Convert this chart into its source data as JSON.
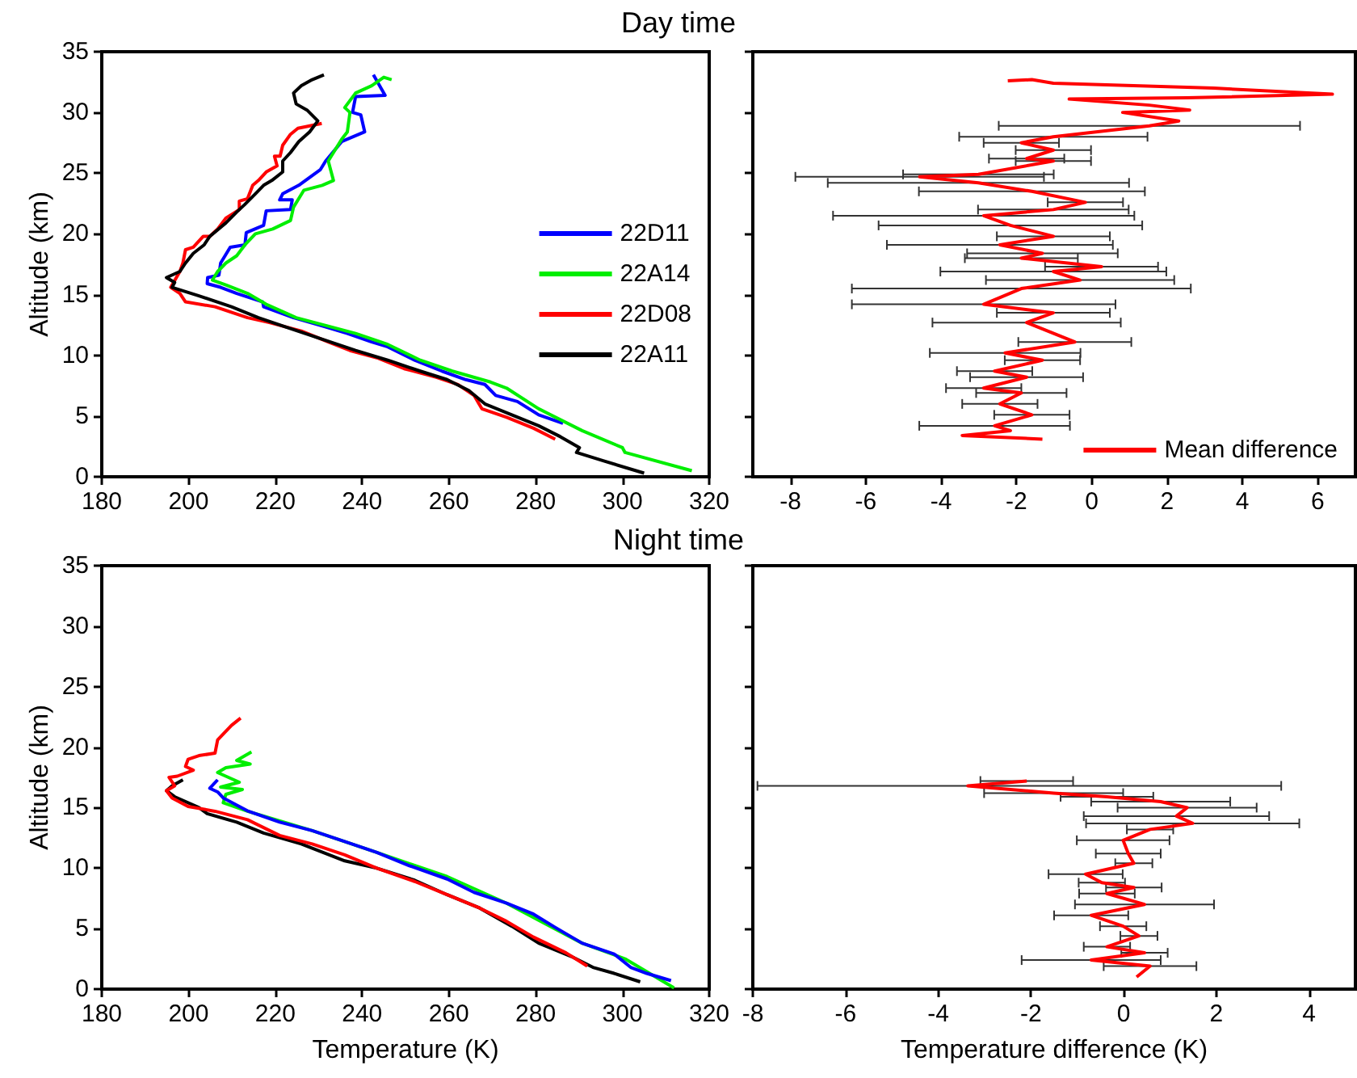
{
  "chart_data": [
    {
      "type": "line",
      "title": "Day time",
      "ylabel": "Altitude (km)",
      "xlim": [
        180,
        320
      ],
      "xticks": [
        180,
        200,
        220,
        240,
        260,
        280,
        300,
        320
      ],
      "ylim": [
        0,
        35
      ],
      "yticks": [
        0,
        5,
        10,
        15,
        20,
        25,
        30,
        35
      ],
      "legend": "right",
      "marker": "none",
      "series": [
        {
          "name": "22D11",
          "color": "#0000ff",
          "x": [
            242.6,
            245.3,
            238.5,
            237.8,
            239.7,
            240.6,
            235.3,
            231.6,
            230.4,
            225.4,
            221.7,
            221.0,
            223.9,
            223.5,
            217.9,
            217.3,
            213.3,
            213.0,
            209.6,
            207.4,
            207.0,
            204.4,
            204.3,
            207.4,
            211.1,
            217.1,
            217.3,
            224.2,
            231.0,
            236.6,
            242.2,
            245.9,
            252.1,
            258.4,
            263.9,
            268.3,
            270.8,
            275.8,
            280.7,
            286.3
          ],
          "values": [
            33.1,
            31.4,
            31.3,
            30.0,
            29.8,
            28.4,
            27.6,
            26.0,
            25.3,
            24.0,
            23.3,
            22.8,
            22.8,
            22.0,
            21.9,
            20.7,
            20.1,
            19.1,
            18.9,
            17.6,
            16.6,
            16.4,
            15.9,
            15.6,
            15.1,
            14.4,
            14.0,
            13.1,
            12.4,
            11.8,
            11.1,
            10.7,
            9.6,
            8.7,
            8.0,
            7.6,
            6.7,
            6.2,
            5.1,
            4.4
          ]
        },
        {
          "name": "22A14",
          "color": "#00ee00",
          "x": [
            246.8,
            245.0,
            242.2,
            238.5,
            236.0,
            237.2,
            236.6,
            235.3,
            232.2,
            233.4,
            230.8,
            226.6,
            224.2,
            223.5,
            219.4,
            215.4,
            213.0,
            211.1,
            208.6,
            206.7,
            205.5,
            208.6,
            213.6,
            217.9,
            224.8,
            232.2,
            238.5,
            245.9,
            253.4,
            260.8,
            269.6,
            273.3,
            280.7,
            290.7,
            300.0,
            300.6,
            316.0
          ],
          "values": [
            32.7,
            32.9,
            32.2,
            31.6,
            30.4,
            30.0,
            28.4,
            27.8,
            26.0,
            24.4,
            24.0,
            23.6,
            22.2,
            21.1,
            20.4,
            20.0,
            19.1,
            18.2,
            17.6,
            16.9,
            16.2,
            15.8,
            15.1,
            14.2,
            13.1,
            12.4,
            11.8,
            10.9,
            9.6,
            8.7,
            7.8,
            7.3,
            5.6,
            3.8,
            2.4,
            2.0,
            0.5
          ]
        },
        {
          "name": "22D08",
          "color": "#ff0000",
          "x": [
            230.7,
            225.2,
            223.5,
            221.7,
            221.1,
            219.8,
            220.4,
            217.9,
            216.1,
            214.8,
            213.6,
            211.7,
            211.7,
            208.6,
            206.7,
            204.9,
            203.4,
            201.1,
            199.3,
            198.7,
            198.0,
            195.9,
            198.0,
            199.3,
            206.1,
            213.6,
            218.6,
            226.0,
            232.2,
            237.2,
            243.4,
            249.7,
            257.1,
            262.1,
            265.8,
            267.6,
            273.3,
            279.5,
            284.5
          ],
          "values": [
            29.1,
            28.7,
            28.2,
            27.3,
            26.4,
            26.4,
            25.6,
            25.1,
            24.4,
            24.0,
            22.9,
            22.7,
            22.0,
            21.3,
            20.4,
            19.8,
            19.8,
            18.9,
            18.7,
            17.6,
            16.9,
            15.6,
            15.1,
            14.4,
            14.0,
            13.1,
            12.7,
            12.0,
            11.1,
            10.4,
            9.8,
            8.9,
            8.2,
            7.6,
            6.7,
            5.6,
            4.9,
            4.0,
            3.1
          ]
        },
        {
          "name": "22A11",
          "color": "#000000",
          "x": [
            231.2,
            228.5,
            226.0,
            224.2,
            224.8,
            227.3,
            229.8,
            227.9,
            225.4,
            223.5,
            221.7,
            221.7,
            219.2,
            217.3,
            215.4,
            212.9,
            211.1,
            208.6,
            204.9,
            203.6,
            201.1,
            199.3,
            198.0,
            194.9,
            196.8,
            196.2,
            202.4,
            209.9,
            216.1,
            223.5,
            231.0,
            238.5,
            245.9,
            253.4,
            259.6,
            264.6,
            268.3,
            274.5,
            280.7,
            285.7,
            290.1,
            289.4,
            295.7,
            305.0
          ],
          "values": [
            33.1,
            32.7,
            32.2,
            31.6,
            30.7,
            30.2,
            29.3,
            28.4,
            27.6,
            26.7,
            26.0,
            25.1,
            24.4,
            24.0,
            23.3,
            22.4,
            21.8,
            20.9,
            19.8,
            19.1,
            18.4,
            17.6,
            16.9,
            16.4,
            16.0,
            15.6,
            14.9,
            14.0,
            13.1,
            12.2,
            11.3,
            10.4,
            9.6,
            8.7,
            8.0,
            7.1,
            6.0,
            5.1,
            4.2,
            3.3,
            2.4,
            2.0,
            1.3,
            0.3
          ]
        }
      ]
    },
    {
      "type": "line",
      "xlim": [
        -9,
        7
      ],
      "xticks": [
        -8,
        -6,
        -4,
        -2,
        0,
        2,
        4,
        6
      ],
      "ylim": [
        0,
        35
      ],
      "yticks": [
        0,
        5,
        10,
        15,
        20,
        25,
        30,
        35
      ],
      "tick_labels": "x",
      "legend": "bottom right",
      "marker": "none",
      "series": [
        {
          "name": "Mean difference",
          "color": "#ff0000",
          "x": [
            -2.23,
            -1.59,
            -1.02,
            3.24,
            6.39,
            2.53,
            -0.6,
            1.53,
            2.6,
            0.82,
            2.31,
            1.53,
            -1.02,
            -1.87,
            -1.02,
            -1.73,
            -1.02,
            -3.01,
            -4.57,
            -3.01,
            -1.59,
            -0.17,
            -1.02,
            -2.87,
            -2.16,
            -1.02,
            -2.44,
            -1.31,
            -1.87,
            0.26,
            -1.02,
            -0.31,
            -1.87,
            -2.87,
            -1.02,
            -1.73,
            -0.45,
            -2.3,
            -1.31,
            -2.58,
            -1.73,
            -2.87,
            -1.87,
            -2.44,
            -1.59,
            -2.58,
            -2.16,
            -3.44,
            -1.31
          ],
          "values": [
            32.6,
            32.7,
            32.4,
            32.0,
            31.5,
            31.2,
            31.1,
            30.6,
            30.2,
            30.0,
            29.3,
            28.9,
            28.0,
            27.5,
            26.9,
            26.2,
            26.0,
            24.9,
            24.7,
            24.2,
            23.5,
            22.6,
            22.0,
            21.5,
            20.7,
            19.8,
            19.1,
            18.4,
            18.0,
            17.3,
            16.9,
            16.2,
            15.5,
            14.2,
            13.5,
            12.7,
            11.1,
            10.2,
            9.6,
            8.7,
            8.2,
            7.3,
            6.9,
            6.0,
            5.1,
            4.2,
            3.8,
            3.4,
            3.1
          ],
          "xerrors": [
            null,
            null,
            null,
            null,
            null,
            null,
            null,
            null,
            null,
            null,
            null,
            4,
            2.5,
            1,
            1,
            1,
            1,
            2,
            3.3,
            4,
            3,
            1,
            2,
            4,
            3.5,
            1.5,
            3,
            2,
            1.5,
            1.5,
            3,
            2.5,
            4.5,
            3.5,
            1.5,
            2.5,
            1.5,
            2,
            1,
            1,
            1.5,
            1,
            1.2,
            1,
            1,
            2,
            null,
            null,
            null
          ]
        }
      ]
    },
    {
      "type": "line",
      "title": "Night time",
      "xlabel": "Temperature (K)",
      "ylabel": "Altitude (km)",
      "xlim": [
        180,
        320
      ],
      "xticks": [
        180,
        200,
        220,
        240,
        260,
        280,
        300,
        320
      ],
      "ylim": [
        0,
        35
      ],
      "yticks": [
        0,
        5,
        10,
        15,
        20,
        25,
        30,
        35
      ],
      "marker": "none",
      "series": [
        {
          "color": "#0000ff",
          "x": [
            206.7,
            204.9,
            206.7,
            208.0,
            211.7,
            213.8,
            221.0,
            228.5,
            236.0,
            243.4,
            250.9,
            259.6,
            265.8,
            273.3,
            279.5,
            284.5,
            290.7,
            298.1,
            301.9,
            305.6,
            311.2
          ],
          "values": [
            17.3,
            16.6,
            16.3,
            15.8,
            15.1,
            14.7,
            13.8,
            13.1,
            12.2,
            11.3,
            10.2,
            9.1,
            8.0,
            7.1,
            6.2,
            5.1,
            3.8,
            2.9,
            1.8,
            1.3,
            0.7
          ]
        },
        {
          "color": "#00ee00",
          "x": [
            214.5,
            211.1,
            214.2,
            208.6,
            206.7,
            211.7,
            207.4,
            212.4,
            208.6,
            208.0,
            213.6,
            228.5,
            243.4,
            259.6,
            273.3,
            290.7,
            300.6,
            311.9
          ],
          "values": [
            19.6,
            18.9,
            18.6,
            18.3,
            17.9,
            17.1,
            16.7,
            16.5,
            16.1,
            15.4,
            14.7,
            13.1,
            11.3,
            9.3,
            7.1,
            3.8,
            2.5,
            0.1
          ]
        },
        {
          "color": "#ff0000",
          "x": [
            212.0,
            209.9,
            206.7,
            206.1,
            202.4,
            199.9,
            199.3,
            201.1,
            197.4,
            195.5,
            196.8,
            194.9,
            196.2,
            199.9,
            206.1,
            213.6,
            221.0,
            228.5,
            236.0,
            243.4,
            252.1,
            259.6,
            267.1,
            273.3,
            279.5,
            287.0,
            291.9
          ],
          "values": [
            22.4,
            21.8,
            20.6,
            19.5,
            19.3,
            19.0,
            18.4,
            18.1,
            17.6,
            17.5,
            16.8,
            16.4,
            15.8,
            15.1,
            14.7,
            14.0,
            12.7,
            12.0,
            11.1,
            10.0,
            8.9,
            7.8,
            6.7,
            5.6,
            4.3,
            3.0,
            1.9
          ]
        },
        {
          "color": "#000000",
          "x": [
            198.7,
            196.2,
            194.9,
            196.8,
            202.4,
            204.3,
            211.1,
            217.3,
            226.0,
            236.0,
            243.4,
            252.1,
            259.6,
            267.1,
            274.5,
            280.7,
            288.2,
            293.2,
            298.1,
            304.1
          ],
          "values": [
            17.3,
            16.8,
            16.4,
            15.9,
            15.0,
            14.5,
            13.8,
            12.9,
            12.0,
            10.6,
            10.0,
            9.0,
            7.8,
            6.7,
            5.2,
            3.8,
            2.7,
            1.8,
            1.3,
            0.6
          ]
        }
      ]
    },
    {
      "type": "line",
      "xlabel": "Temperature difference (K)",
      "xlim": [
        -8,
        5
      ],
      "xticks": [
        -8,
        -6,
        -4,
        -2,
        0,
        2,
        4
      ],
      "ylim": [
        0,
        35
      ],
      "yticks": [
        0,
        5,
        10,
        15,
        20,
        25,
        30,
        35
      ],
      "tick_labels": "x",
      "marker": "none",
      "series": [
        {
          "color": "#ff0000",
          "x": [
            -2.09,
            -3.36,
            -1.51,
            -0.36,
            0.8,
            1.37,
            1.14,
            1.49,
            0.57,
            -0.01,
            0.1,
            0.22,
            -0.82,
            -0.47,
            0.22,
            -0.36,
            0.45,
            -0.7,
            -0.01,
            0.33,
            -0.36,
            0.45,
            -0.7,
            0.57,
            0.28
          ],
          "values": [
            17.2,
            16.8,
            16.2,
            15.9,
            15.5,
            15.0,
            14.3,
            13.7,
            13.2,
            12.3,
            11.2,
            10.4,
            9.5,
            8.8,
            8.4,
            7.9,
            7.0,
            6.1,
            5.2,
            4.4,
            3.5,
            3.0,
            2.4,
            1.9,
            1.0
          ],
          "xerrors": [
            1,
            [
              -7.9,
              3.4
            ],
            1.5,
            1,
            1.5,
            1.5,
            2,
            2.3,
            0.5,
            1,
            0.7,
            0.4,
            0.8,
            0.5,
            0.6,
            0.6,
            1.5,
            0.8,
            0.5,
            0.4,
            0.5,
            0.5,
            1.5,
            1,
            null
          ]
        }
      ]
    }
  ]
}
